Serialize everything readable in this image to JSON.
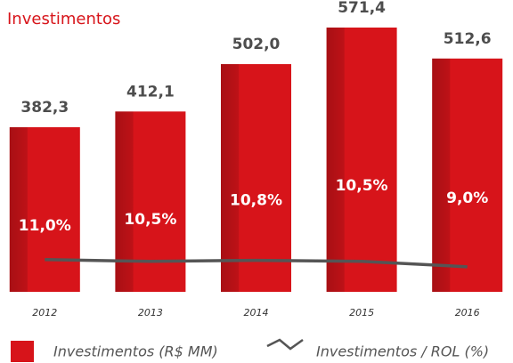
{
  "chart_data": {
    "type": "bar",
    "title": "Investimentos",
    "categories": [
      "2012",
      "2013",
      "2014",
      "2015",
      "2016"
    ],
    "ylim": [
      70,
      600
    ],
    "y2lim": [
      2,
      80
    ],
    "series": [
      {
        "name": "Investimentos (R$ MM)",
        "type": "bar",
        "color": "#d7141a",
        "values": [
          382.3,
          412.1,
          502.0,
          571.4,
          512.6
        ],
        "value_labels": [
          "382,3",
          "412,1",
          "502,0",
          "571,4",
          "512,6"
        ]
      },
      {
        "name": "Investimentos / ROL (%)",
        "type": "line",
        "axis": "y2",
        "color": "#555555",
        "values": [
          11.0,
          10.5,
          10.8,
          10.5,
          9.0
        ],
        "value_labels": [
          "11,0%",
          "10,5%",
          "10,8%",
          "10,5%",
          "9,0%"
        ]
      }
    ]
  }
}
